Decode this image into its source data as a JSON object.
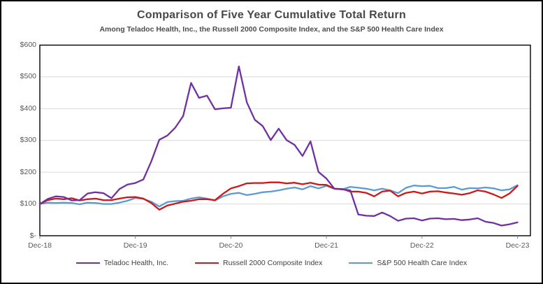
{
  "chart_data": {
    "type": "line",
    "title": "Comparison of Five Year Cumulative Total Return",
    "subtitle": "Among Teladoc Health, Inc., the Russell 2000 Composite Index, and the S&P 500 Health Care Index",
    "x_tick_labels": [
      "Dec-18",
      "Dec-19",
      "Dec-20",
      "Dec-21",
      "Dec-22",
      "Dec-23"
    ],
    "y_tick_labels": [
      "$600",
      "$500",
      "$400",
      "$300",
      "$200",
      "$100",
      "$-"
    ],
    "y_tick_values": [
      600,
      500,
      400,
      300,
      200,
      100,
      0
    ],
    "ylim": [
      0,
      600
    ],
    "x_unit": "month",
    "x_points": 61,
    "grid": "horizontal",
    "legend_position": "bottom",
    "series": [
      {
        "name": "Teladoc Health, Inc.",
        "color": "#7030a0",
        "values": [
          100,
          116,
          124,
          122,
          111,
          112,
          133,
          137,
          134,
          118,
          147,
          161,
          166,
          177,
          234,
          302,
          315,
          340,
          377,
          481,
          434,
          441,
          398,
          401,
          403,
          533,
          420,
          365,
          345,
          301,
          337,
          301,
          286,
          251,
          297,
          201,
          180,
          148,
          146,
          143,
          67,
          63,
          62,
          73,
          62,
          47,
          54,
          55,
          48,
          54,
          55,
          52,
          53,
          49,
          51,
          55,
          44,
          40,
          32,
          36,
          42
        ]
      },
      {
        "name": "Russell 2000 Composite Index",
        "color": "#d01616",
        "values": [
          100,
          112,
          117,
          115,
          118,
          111,
          115,
          117,
          112,
          112,
          117,
          121,
          122,
          117,
          103,
          82,
          95,
          101,
          107,
          110,
          115,
          115,
          112,
          132,
          149,
          156,
          165,
          166,
          166,
          168,
          168,
          165,
          167,
          162,
          167,
          161,
          160,
          148,
          147,
          139,
          139,
          135,
          124,
          139,
          142,
          124,
          135,
          139,
          133,
          139,
          140,
          136,
          133,
          129,
          134,
          143,
          139,
          130,
          119,
          133,
          157
        ]
      },
      {
        "name": "S&P 500 Health Care Index",
        "color": "#5b9bd5",
        "values": [
          100,
          104,
          103,
          104,
          103,
          99,
          104,
          103,
          100,
          100,
          104,
          110,
          119,
          116,
          107,
          92,
          106,
          109,
          110,
          117,
          121,
          117,
          111,
          124,
          132,
          135,
          128,
          132,
          137,
          139,
          143,
          148,
          152,
          146,
          156,
          149,
          157,
          148,
          146,
          154,
          151,
          148,
          143,
          148,
          143,
          134,
          151,
          158,
          156,
          157,
          150,
          150,
          154,
          145,
          150,
          149,
          152,
          149,
          143,
          146,
          159
        ]
      }
    ]
  }
}
